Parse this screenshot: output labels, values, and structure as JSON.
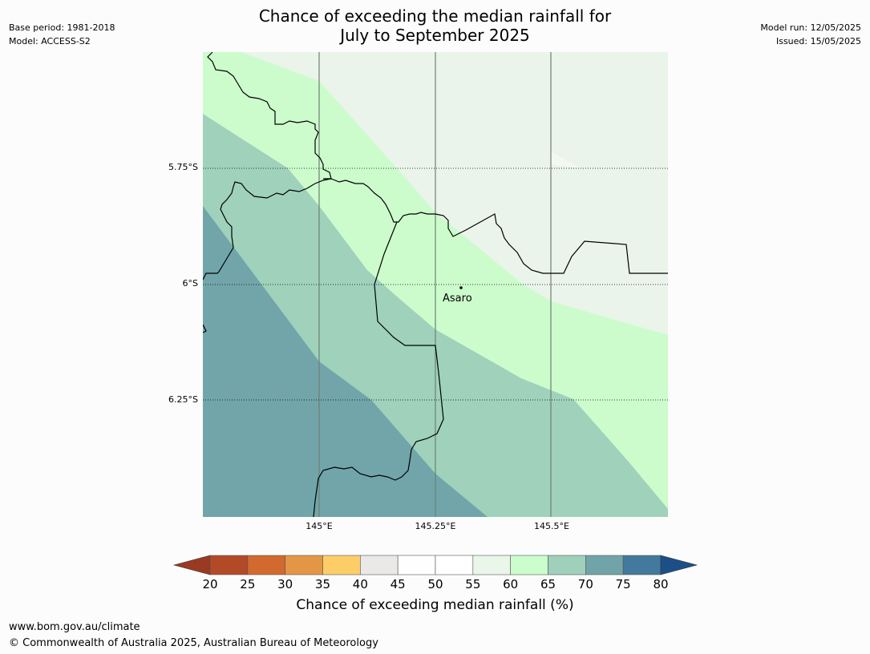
{
  "title": {
    "line1": "Chance of exceeding the median rainfall for",
    "line2": "July to September 2025"
  },
  "meta": {
    "base_period": "Base period: 1981-2018",
    "model": "Model: ACCESS-S2",
    "model_run": "Model run: 12/05/2025",
    "issued": "Issued: 15/05/2025"
  },
  "map": {
    "lat_labels": [
      "5.75°S",
      "6°S",
      "6.25°S"
    ],
    "lon_labels": [
      "145°E",
      "145.25°E",
      "145.5°E"
    ],
    "place": {
      "name": "Asaro"
    },
    "zone_colors": {
      "p55_60": "#eaf4ea",
      "p60_65": "#ccfccc",
      "p65_70": "#9fd1bb",
      "p70_75": "#71a5a9"
    }
  },
  "colorbar": {
    "ticks": [
      "20",
      "25",
      "30",
      "35",
      "40",
      "45",
      "50",
      "55",
      "60",
      "65",
      "70",
      "75",
      "80"
    ],
    "colors": [
      "#b34a27",
      "#d2692f",
      "#e49646",
      "#fdcd68",
      "#ebe9e7",
      "#fefefe",
      "#ffffff",
      "#eaf6ea",
      "#ccfdcc",
      "#9fd0bb",
      "#71a4a9",
      "#43799c"
    ],
    "under_color": "#9a3a22",
    "over_color": "#1b4f88",
    "label": "Chance of exceeding median rainfall (%)"
  },
  "footer": {
    "url": "www.bom.gov.au/climate",
    "copyright": "© Commonwealth of Australia 2025, Australian Bureau of Meteorology"
  }
}
